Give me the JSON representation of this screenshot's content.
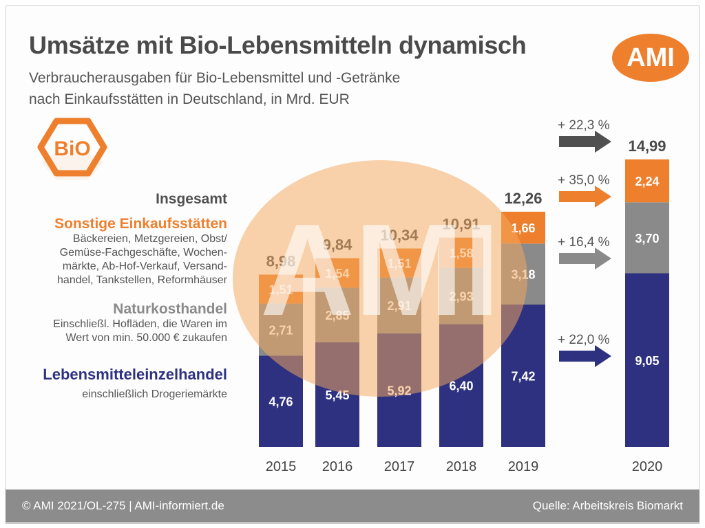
{
  "title": "Umsätze mit Bio-Lebensmitteln dynamisch",
  "subtitle_line1": "Verbraucherausgaben für Bio-Lebensmittel  und -Getränke",
  "subtitle_line2": "nach Einkaufsstätten in Deutschland, in Mrd. EUR",
  "logo_text": "AMI",
  "bio_badge_text": "BiO",
  "watermark_text": "AMI",
  "legend": {
    "total": {
      "label": "Insgesamt",
      "color": "#505050"
    },
    "sonstige": {
      "label": "Sonstige Einkaufsstätten",
      "color": "#ee7f2d",
      "description": [
        "Bäckereien, Metzgereien, Obst/",
        "Gemüse-Fachgeschäfte, Wochen-",
        "märkte, Ab-Hof-Verkauf, Versand-",
        "handel, Tankstellen, Reformhäuser"
      ]
    },
    "naturkost": {
      "label": "Naturkosthandel",
      "color": "#8a8a8a",
      "description": [
        "Einschließl. Hofläden, die Waren im",
        "Wert von min. 50.000 € zukaufen"
      ]
    },
    "lebensmittel": {
      "label": "Lebensmitteleinzelhandel",
      "color": "#2e3180",
      "description": [
        "einschließlich Drogeriemärkte"
      ]
    }
  },
  "footer": {
    "left": "© AMI 2021/OL-275 | AMI-informiert.de",
    "right": "Quelle: Arbeitskreis Biomarkt"
  },
  "chart_data": {
    "type": "bar",
    "stacked": true,
    "categories": [
      "2015",
      "2016",
      "2017",
      "2018",
      "2019",
      "2020"
    ],
    "series": [
      {
        "name": "Lebensmitteleinzelhandel",
        "values": [
          4.76,
          5.45,
          5.92,
          6.4,
          7.42,
          9.05
        ],
        "labels": [
          "4,76",
          "5,45",
          "5,92",
          "6,40",
          "7,42",
          "9,05"
        ],
        "color": "#2e3180"
      },
      {
        "name": "Naturkosthandel",
        "values": [
          2.71,
          2.85,
          2.91,
          2.93,
          3.18,
          3.7
        ],
        "labels": [
          "2,71",
          "2,85",
          "2,91",
          "2,93",
          "3,18",
          "3,70"
        ],
        "color": "#8a8a8a"
      },
      {
        "name": "Sonstige Einkaufsstätten",
        "values": [
          1.51,
          1.54,
          1.51,
          1.58,
          1.66,
          2.24
        ],
        "labels": [
          "1,51",
          "1,54",
          "1,51",
          "1,58",
          "1,66",
          "2,24"
        ],
        "color": "#ee7f2d"
      }
    ],
    "totals": [
      8.98,
      9.84,
      10.34,
      10.91,
      12.26,
      14.99
    ],
    "total_labels": [
      "8,98",
      "9,84",
      "10,34",
      "10,91",
      "12,26",
      "14,99"
    ],
    "changes_2019_2020": [
      {
        "series": "Insgesamt",
        "label": "+ 22,3 %",
        "color": "#505050"
      },
      {
        "series": "Sonstige Einkaufsstätten",
        "label": "+ 35,0 %",
        "color": "#ee7f2d"
      },
      {
        "series": "Naturkosthandel",
        "label": "+ 16,4 %",
        "color": "#8a8a8a"
      },
      {
        "series": "Lebensmitteleinzelhandel",
        "label": "+ 22,0 %",
        "color": "#2e3180"
      }
    ],
    "ylim": [
      0,
      15.5
    ],
    "grid": false
  }
}
